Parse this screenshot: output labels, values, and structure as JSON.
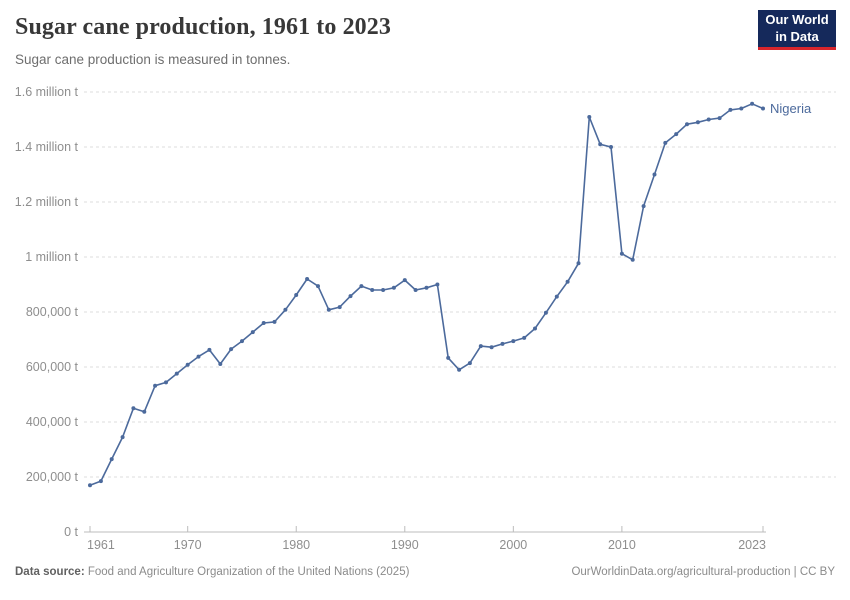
{
  "header": {
    "title": "Sugar cane production, 1961 to 2023",
    "subtitle": "Sugar cane production is measured in tonnes.",
    "logo_line1": "Our World",
    "logo_line2": "in Data"
  },
  "footer": {
    "source_label": "Data source:",
    "source_text": " Food and Agriculture Organization of the United Nations (2025)",
    "link_text": "OurWorldinData.org/agricultural-production | CC BY"
  },
  "colors": {
    "line": "#4C6A9C",
    "grid": "#dedede",
    "axis": "#bcbcbc",
    "tick_text": "#8e8e8e",
    "logo_bg": "#15295B",
    "logo_accent": "#D8252C"
  },
  "chart_data": {
    "type": "line",
    "title": "Sugar cane production, 1961 to 2023",
    "subtitle": "Sugar cane production is measured in tonnes.",
    "unit": "tonnes",
    "xlabel": "",
    "ylabel": "",
    "xlim": [
      1961,
      2023
    ],
    "ylim": [
      0,
      1600000
    ],
    "grid": true,
    "legend_position": "end-of-line",
    "x_ticks": [
      {
        "value": 1961,
        "label": "1961"
      },
      {
        "value": 1970,
        "label": "1970"
      },
      {
        "value": 1980,
        "label": "1980"
      },
      {
        "value": 1990,
        "label": "1990"
      },
      {
        "value": 2000,
        "label": "2000"
      },
      {
        "value": 2010,
        "label": "2010"
      },
      {
        "value": 2023,
        "label": "2023"
      }
    ],
    "y_ticks": [
      {
        "value": 0,
        "label": "0 t"
      },
      {
        "value": 200000,
        "label": "200,000 t"
      },
      {
        "value": 400000,
        "label": "400,000 t"
      },
      {
        "value": 600000,
        "label": "600,000 t"
      },
      {
        "value": 800000,
        "label": "800,000 t"
      },
      {
        "value": 1000000,
        "label": "1 million t"
      },
      {
        "value": 1200000,
        "label": "1.2 million t"
      },
      {
        "value": 1400000,
        "label": "1.4 million t"
      },
      {
        "value": 1600000,
        "label": "1.6 million t"
      }
    ],
    "series": [
      {
        "name": "Nigeria",
        "color": "#4C6A9C",
        "x": [
          1961,
          1962,
          1963,
          1964,
          1965,
          1966,
          1967,
          1968,
          1969,
          1970,
          1971,
          1972,
          1973,
          1974,
          1975,
          1976,
          1977,
          1978,
          1979,
          1980,
          1981,
          1982,
          1983,
          1984,
          1985,
          1986,
          1987,
          1988,
          1989,
          1990,
          1991,
          1992,
          1993,
          1994,
          1995,
          1996,
          1997,
          1998,
          1999,
          2000,
          2001,
          2002,
          2003,
          2004,
          2005,
          2006,
          2007,
          2008,
          2009,
          2010,
          2011,
          2012,
          2013,
          2014,
          2015,
          2016,
          2017,
          2018,
          2019,
          2020,
          2021,
          2022,
          2023
        ],
        "values": [
          170000,
          185000,
          265000,
          345000,
          450000,
          437000,
          532000,
          544000,
          576000,
          608000,
          638000,
          662000,
          611000,
          665000,
          694000,
          727000,
          760000,
          764000,
          808000,
          862000,
          920000,
          894000,
          808000,
          818000,
          858000,
          894000,
          880000,
          880000,
          888000,
          916000,
          880000,
          888000,
          900000,
          633000,
          590000,
          614000,
          676000,
          672000,
          684000,
          694000,
          706000,
          740000,
          797000,
          856000,
          910000,
          977000,
          1509000,
          1410000,
          1400000,
          1012000,
          990000,
          1185000,
          1300000,
          1415000,
          1447000,
          1483000,
          1490000,
          1500000,
          1505000,
          1535000,
          1540000,
          1557000,
          1540000
        ]
      }
    ]
  }
}
